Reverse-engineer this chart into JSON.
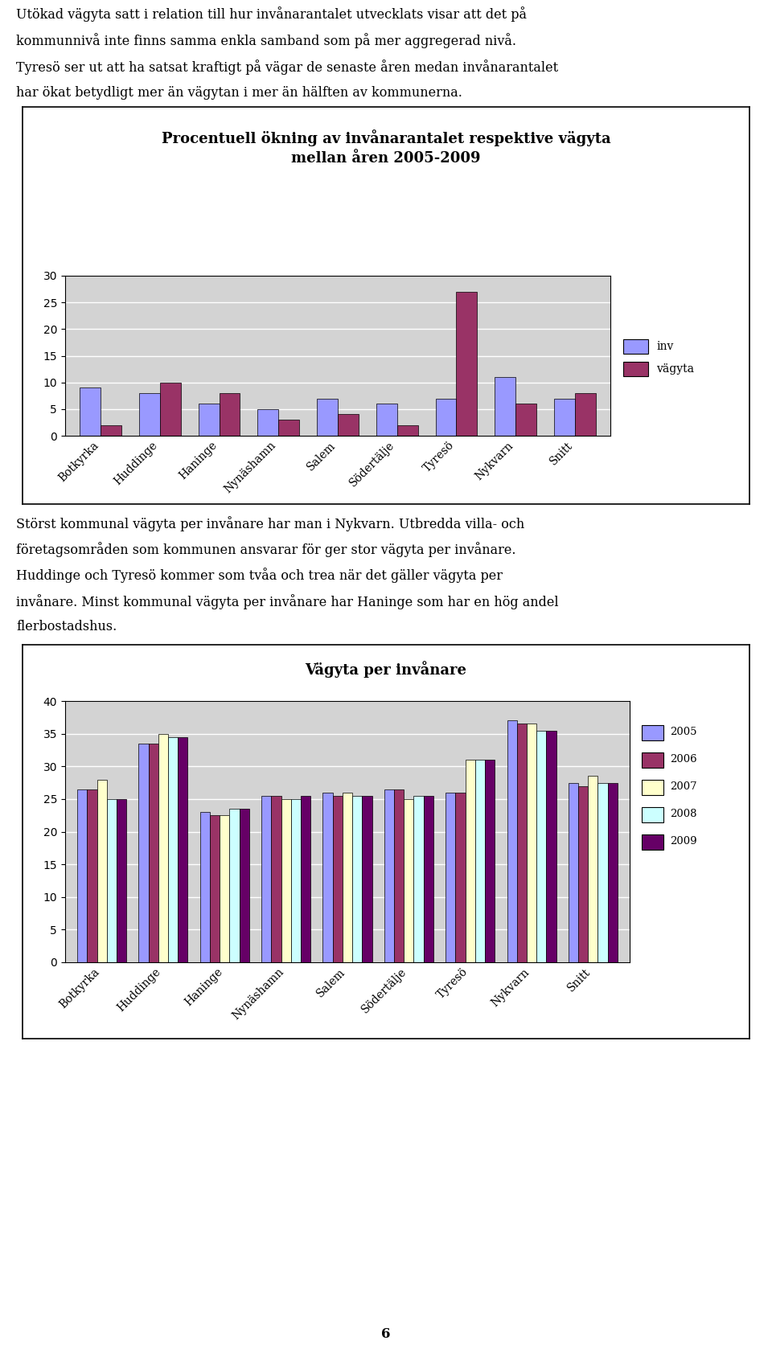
{
  "text_block1_lines": [
    "Utökad vägyta satt i relation till hur invånarantalet utvecklats visar att det på",
    "kommunnivå inte finns samma enkla samband som på mer aggregerad nivå.",
    "Tyresö ser ut att ha satsat kraftigt på vägar de senaste åren medan invånarantalet",
    "har ökat betydligt mer än vägytan i mer än hälften av kommunerna."
  ],
  "chart1_title_line1": "Procentuell ökning av invånarantalet respektive vägyta",
  "chart1_title_line2": "mellan åren 2005-2009",
  "chart1_categories": [
    "Botkyrka",
    "Huddinge",
    "Haninge",
    "Nynäshamn",
    "Salem",
    "Södertälje",
    "Tyresö",
    "Nykvarn",
    "Snitt"
  ],
  "chart1_inv": [
    9,
    8,
    6,
    5,
    7,
    6,
    7,
    11,
    7
  ],
  "chart1_vagyta": [
    2,
    10,
    8,
    3,
    4,
    2,
    27,
    6,
    8
  ],
  "chart1_ylim": [
    0,
    30
  ],
  "chart1_yticks": [
    0,
    5,
    10,
    15,
    20,
    25,
    30
  ],
  "chart1_color_inv": "#9999FF",
  "chart1_color_vagyta": "#993366",
  "chart1_legend_inv": "inv",
  "chart1_legend_vagyta": "vägyta",
  "text_block2_lines": [
    "Störst kommunal vägyta per invånare har man i Nykvarn. Utbredda villa- och",
    "företagsområden som kommunen ansvarar för ger stor vägyta per invånare.",
    "Huddinge och Tyresö kommer som tvåa och trea när det gäller vägyta per",
    "invånare. Minst kommunal vägyta per invånare har Haninge som har en hög andel",
    "flerbostadshus."
  ],
  "chart2_title": "Vägyta per invånare",
  "chart2_categories": [
    "Botkyrka",
    "Huddinge",
    "Haninge",
    "Nynäshamn",
    "Salem",
    "Södertälje",
    "Tyresö",
    "Nykvarn",
    "Snitt"
  ],
  "chart2_2005": [
    26.5,
    33.5,
    23,
    25.5,
    26,
    26.5,
    26,
    37,
    27.5
  ],
  "chart2_2006": [
    26.5,
    33.5,
    22.5,
    25.5,
    25.5,
    26.5,
    26,
    36.5,
    27
  ],
  "chart2_2007": [
    28,
    35,
    22.5,
    25,
    26,
    25,
    31,
    36.5,
    28.5
  ],
  "chart2_2008": [
    25,
    34.5,
    23.5,
    25,
    25.5,
    25.5,
    31,
    35.5,
    27.5
  ],
  "chart2_2009": [
    25,
    34.5,
    23.5,
    25.5,
    25.5,
    25.5,
    31,
    35.5,
    27.5
  ],
  "chart2_ylim": [
    0,
    40
  ],
  "chart2_yticks": [
    0,
    5,
    10,
    15,
    20,
    25,
    30,
    35,
    40
  ],
  "chart2_color_2005": "#9999FF",
  "chart2_color_2006": "#993366",
  "chart2_color_2007": "#FFFFCC",
  "chart2_color_2008": "#CCFFFF",
  "chart2_color_2009": "#660066",
  "page_number": "6",
  "chart_bg_color": "#D3D3D3",
  "font_size_body": 11.5,
  "font_size_tick": 10,
  "font_size_title": 13
}
